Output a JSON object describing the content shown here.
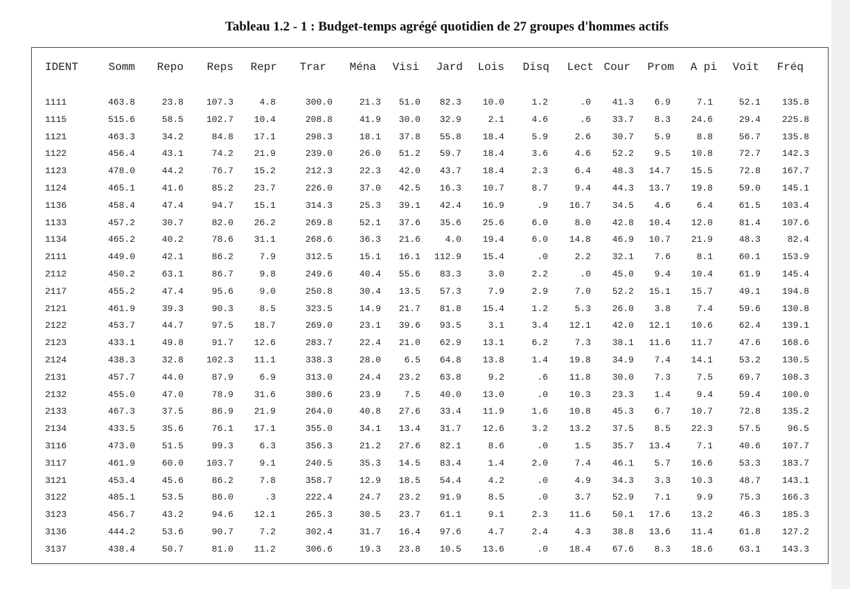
{
  "title": "Tableau 1.2 - 1 :  Budget-temps agrégé quotidien de 27 groupes d'hommes actifs",
  "table": {
    "header": [
      "IDENT",
      "Somm",
      "Repo",
      "Reps",
      "Repr",
      "Trar",
      "Ména",
      "Visi",
      "Jard",
      "Lois",
      "Disq",
      "Lect",
      "Cour",
      "Prom",
      "A pi",
      "Voit",
      "Fréq"
    ],
    "rows": [
      [
        "1111",
        "463.8",
        "23.8",
        "107.3",
        "4.8",
        "300.0",
        "21.3",
        "51.0",
        "82.3",
        "10.0",
        "1.2",
        ".0",
        "41.3",
        "6.9",
        "7.1",
        "52.1",
        "135.8"
      ],
      [
        "1115",
        "515.6",
        "58.5",
        "102.7",
        "10.4",
        "208.8",
        "41.9",
        "30.0",
        "32.9",
        "2.1",
        "4.6",
        ".6",
        "33.7",
        "8.3",
        "24.6",
        "29.4",
        "225.8"
      ],
      [
        "1121",
        "463.3",
        "34.2",
        "84.8",
        "17.1",
        "298.3",
        "18.1",
        "37.8",
        "55.8",
        "18.4",
        "5.9",
        "2.6",
        "30.7",
        "5.9",
        "8.8",
        "56.7",
        "135.8"
      ],
      [
        "1122",
        "456.4",
        "43.1",
        "74.2",
        "21.9",
        "239.0",
        "26.0",
        "51.2",
        "59.7",
        "18.4",
        "3.6",
        "4.6",
        "52.2",
        "9.5",
        "10.8",
        "72.7",
        "142.3"
      ],
      [
        "1123",
        "478.0",
        "44.2",
        "76.7",
        "15.2",
        "212.3",
        "22.3",
        "42.0",
        "43.7",
        "18.4",
        "2.3",
        "6.4",
        "48.3",
        "14.7",
        "15.5",
        "72.8",
        "167.7"
      ],
      [
        "1124",
        "465.1",
        "41.6",
        "85.2",
        "23.7",
        "226.0",
        "37.0",
        "42.5",
        "16.3",
        "10.7",
        "8.7",
        "9.4",
        "44.3",
        "13.7",
        "19.8",
        "59.0",
        "145.1"
      ],
      [
        "1136",
        "458.4",
        "47.4",
        "94.7",
        "15.1",
        "314.3",
        "25.3",
        "39.1",
        "42.4",
        "16.9",
        ".9",
        "16.7",
        "34.5",
        "4.6",
        "6.4",
        "61.5",
        "103.4"
      ],
      [
        "1133",
        "457.2",
        "30.7",
        "82.0",
        "26.2",
        "269.8",
        "52.1",
        "37.6",
        "35.6",
        "25.6",
        "6.0",
        "8.0",
        "42.8",
        "10.4",
        "12.0",
        "81.4",
        "107.6"
      ],
      [
        "1134",
        "465.2",
        "40.2",
        "78.6",
        "31.1",
        "268.6",
        "36.3",
        "21.6",
        "4.0",
        "19.4",
        "6.0",
        "14.8",
        "46.9",
        "10.7",
        "21.9",
        "48.3",
        "82.4"
      ],
      [
        "2111",
        "449.0",
        "42.1",
        "86.2",
        "7.9",
        "312.5",
        "15.1",
        "16.1",
        "112.9",
        "15.4",
        ".0",
        "2.2",
        "32.1",
        "7.6",
        "8.1",
        "60.1",
        "153.9"
      ],
      [
        "2112",
        "450.2",
        "63.1",
        "86.7",
        "9.8",
        "249.6",
        "40.4",
        "55.6",
        "83.3",
        "3.0",
        "2.2",
        ".0",
        "45.0",
        "9.4",
        "10.4",
        "61.9",
        "145.4"
      ],
      [
        "2117",
        "455.2",
        "47.4",
        "95.6",
        "9.0",
        "250.8",
        "30.4",
        "13.5",
        "57.3",
        "7.9",
        "2.9",
        "7.0",
        "52.2",
        "15.1",
        "15.7",
        "49.1",
        "194.8"
      ],
      [
        "2121",
        "461.9",
        "39.3",
        "90.3",
        "8.5",
        "323.5",
        "14.9",
        "21.7",
        "81.8",
        "15.4",
        "1.2",
        "5.3",
        "26.0",
        "3.8",
        "7.4",
        "59.6",
        "130.8"
      ],
      [
        "2122",
        "453.7",
        "44.7",
        "97.5",
        "18.7",
        "269.0",
        "23.1",
        "39.6",
        "93.5",
        "3.1",
        "3.4",
        "12.1",
        "42.0",
        "12.1",
        "10.6",
        "62.4",
        "139.1"
      ],
      [
        "2123",
        "433.1",
        "49.8",
        "91.7",
        "12.6",
        "283.7",
        "22.4",
        "21.0",
        "62.9",
        "13.1",
        "6.2",
        "7.3",
        "38.1",
        "11.6",
        "11.7",
        "47.6",
        "168.6"
      ],
      [
        "2124",
        "438.3",
        "32.8",
        "102.3",
        "11.1",
        "338.3",
        "28.0",
        "6.5",
        "64.8",
        "13.8",
        "1.4",
        "19.8",
        "34.9",
        "7.4",
        "14.1",
        "53.2",
        "130.5"
      ],
      [
        "2131",
        "457.7",
        "44.0",
        "87.9",
        "6.9",
        "313.0",
        "24.4",
        "23.2",
        "63.8",
        "9.2",
        ".6",
        "11.8",
        "30.0",
        "7.3",
        "7.5",
        "69.7",
        "108.3"
      ],
      [
        "2132",
        "455.0",
        "47.0",
        "78.9",
        "31.6",
        "380.6",
        "23.9",
        "7.5",
        "40.0",
        "13.0",
        ".0",
        "10.3",
        "23.3",
        "1.4",
        "9.4",
        "59.4",
        "100.0"
      ],
      [
        "2133",
        "467.3",
        "37.5",
        "86.9",
        "21.9",
        "264.0",
        "40.8",
        "27.6",
        "33.4",
        "11.9",
        "1.6",
        "10.8",
        "45.3",
        "6.7",
        "10.7",
        "72.8",
        "135.2"
      ],
      [
        "2134",
        "433.5",
        "35.6",
        "76.1",
        "17.1",
        "355.0",
        "34.1",
        "13.4",
        "31.7",
        "12.6",
        "3.2",
        "13.2",
        "37.5",
        "8.5",
        "22.3",
        "57.5",
        "96.5"
      ],
      [
        "3116",
        "473.0",
        "51.5",
        "99.3",
        "6.3",
        "356.3",
        "21.2",
        "27.6",
        "82.1",
        "8.6",
        ".0",
        "1.5",
        "35.7",
        "13.4",
        "7.1",
        "40.6",
        "107.7"
      ],
      [
        "3117",
        "461.9",
        "60.0",
        "103.7",
        "9.1",
        "240.5",
        "35.3",
        "14.5",
        "83.4",
        "1.4",
        "2.0",
        "7.4",
        "46.1",
        "5.7",
        "16.6",
        "53.3",
        "183.7"
      ],
      [
        "3121",
        "453.4",
        "45.6",
        "86.2",
        "7.8",
        "358.7",
        "12.9",
        "18.5",
        "54.4",
        "4.2",
        ".0",
        "4.9",
        "34.3",
        "3.3",
        "10.3",
        "48.7",
        "143.1"
      ],
      [
        "3122",
        "485.1",
        "53.5",
        "86.0",
        ".3",
        "222.4",
        "24.7",
        "23.2",
        "91.9",
        "8.5",
        ".0",
        "3.7",
        "52.9",
        "7.1",
        "9.9",
        "75.3",
        "166.3"
      ],
      [
        "3123",
        "456.7",
        "43.2",
        "94.6",
        "12.1",
        "265.3",
        "30.5",
        "23.7",
        "61.1",
        "9.1",
        "2.3",
        "11.6",
        "50.1",
        "17.6",
        "13.2",
        "46.3",
        "185.3"
      ],
      [
        "3136",
        "444.2",
        "53.6",
        "90.7",
        "7.2",
        "302.4",
        "31.7",
        "16.4",
        "97.6",
        "4.7",
        "2.4",
        "4.3",
        "38.8",
        "13.6",
        "11.4",
        "61.8",
        "127.2"
      ],
      [
        "3137",
        "438.4",
        "50.7",
        "81.0",
        "11.2",
        "306.6",
        "19.3",
        "23.8",
        "10.5",
        "13.6",
        ".0",
        "18.4",
        "67.6",
        "8.3",
        "18.6",
        "63.1",
        "143.3"
      ]
    ]
  }
}
